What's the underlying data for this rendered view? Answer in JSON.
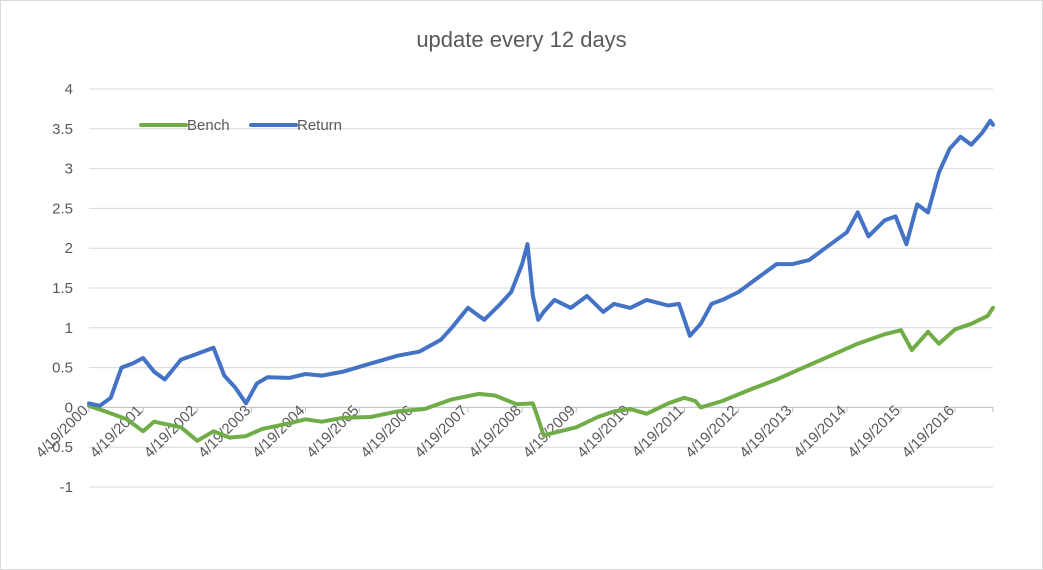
{
  "chart_data": {
    "type": "line",
    "title": "update every 12 days",
    "xlabel": "",
    "ylabel": "",
    "ylim": [
      -1,
      4
    ],
    "yticks": [
      "4",
      "3.5",
      "3",
      "2.5",
      "2",
      "1.5",
      "1",
      "0.5",
      "0",
      "-0.5",
      "-1"
    ],
    "xticks": [
      "4/19/2000",
      "4/19/2001",
      "4/19/2002",
      "4/19/2003",
      "4/19/2004",
      "4/19/2005",
      "4/19/2006",
      "4/19/2007",
      "4/19/2008",
      "4/19/2009",
      "4/19/2010",
      "4/19/2011",
      "4/19/2012",
      "4/19/2013",
      "4/19/2014",
      "4/19/2015",
      "4/19/2016"
    ],
    "grid": true,
    "legend_position": "top-left",
    "series": [
      {
        "name": "Bench",
        "color": "#70ad47",
        "x": [
          2000.3,
          2000.6,
          2001.0,
          2001.3,
          2001.5,
          2002.0,
          2002.3,
          2002.6,
          2002.9,
          2003.2,
          2003.5,
          2004.0,
          2004.3,
          2004.6,
          2005.0,
          2005.5,
          2006.0,
          2006.5,
          2007.0,
          2007.5,
          2007.8,
          2008.2,
          2008.5,
          2008.6,
          2008.7,
          2009.0,
          2009.3,
          2009.7,
          2010.0,
          2010.3,
          2010.6,
          2011.0,
          2011.3,
          2011.5,
          2011.6,
          2012.0,
          2012.5,
          2013.0,
          2013.5,
          2014.0,
          2014.5,
          2015.0,
          2015.3,
          2015.5,
          2015.8,
          2016.0,
          2016.3,
          2016.6,
          2016.9,
          2017.0
        ],
        "y": [
          0.02,
          -0.05,
          -0.15,
          -0.3,
          -0.18,
          -0.25,
          -0.42,
          -0.3,
          -0.38,
          -0.36,
          -0.27,
          -0.2,
          -0.15,
          -0.18,
          -0.13,
          -0.12,
          -0.05,
          -0.02,
          0.1,
          0.17,
          0.15,
          0.04,
          0.05,
          -0.15,
          -0.35,
          -0.3,
          -0.25,
          -0.12,
          -0.05,
          -0.02,
          -0.08,
          0.05,
          0.12,
          0.08,
          0.0,
          0.08,
          0.22,
          0.35,
          0.5,
          0.65,
          0.8,
          0.92,
          0.97,
          0.72,
          0.95,
          0.8,
          0.98,
          1.05,
          1.15,
          1.25
        ]
      },
      {
        "name": "Return",
        "color": "#4472c4",
        "x": [
          2000.3,
          2000.5,
          2000.7,
          2000.9,
          2001.1,
          2001.3,
          2001.5,
          2001.7,
          2002.0,
          2002.2,
          2002.4,
          2002.6,
          2002.8,
          2003.0,
          2003.2,
          2003.4,
          2003.6,
          2004.0,
          2004.3,
          2004.6,
          2005.0,
          2005.5,
          2006.0,
          2006.4,
          2006.8,
          2007.0,
          2007.3,
          2007.6,
          2007.9,
          2008.1,
          2008.3,
          2008.4,
          2008.5,
          2008.6,
          2008.7,
          2008.9,
          2009.2,
          2009.5,
          2009.8,
          2010.0,
          2010.3,
          2010.6,
          2011.0,
          2011.2,
          2011.4,
          2011.6,
          2011.8,
          2012.0,
          2012.3,
          2012.6,
          2013.0,
          2013.3,
          2013.6,
          2014.0,
          2014.3,
          2014.5,
          2014.7,
          2015.0,
          2015.2,
          2015.4,
          2015.6,
          2015.8,
          2016.0,
          2016.2,
          2016.4,
          2016.6,
          2016.8,
          2016.95,
          2017.0
        ],
        "y": [
          0.05,
          0.02,
          0.12,
          0.5,
          0.55,
          0.62,
          0.45,
          0.35,
          0.6,
          0.65,
          0.7,
          0.75,
          0.4,
          0.25,
          0.05,
          0.3,
          0.38,
          0.37,
          0.42,
          0.4,
          0.45,
          0.55,
          0.65,
          0.7,
          0.85,
          1.0,
          1.25,
          1.1,
          1.3,
          1.45,
          1.8,
          2.05,
          1.4,
          1.1,
          1.2,
          1.35,
          1.25,
          1.4,
          1.2,
          1.3,
          1.25,
          1.35,
          1.28,
          1.3,
          0.9,
          1.05,
          1.3,
          1.35,
          1.45,
          1.6,
          1.8,
          1.8,
          1.85,
          2.05,
          2.2,
          2.45,
          2.15,
          2.35,
          2.4,
          2.05,
          2.55,
          2.45,
          2.95,
          3.25,
          3.4,
          3.3,
          3.45,
          3.6,
          3.55
        ]
      }
    ]
  }
}
